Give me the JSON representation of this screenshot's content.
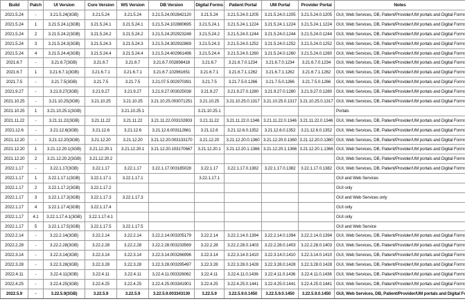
{
  "columns": [
    "Build",
    "Patch",
    "UI Version",
    "Core Version",
    "WS Version",
    "DB Version",
    "Digital Forms",
    "Patient Portal",
    "UM Portal",
    "Provider Portal",
    "Notes"
  ],
  "rows": [
    [
      "2021.5.24",
      "-",
      "3.21.5.24(3GB)",
      "3.21.5.24",
      "3.21.5.24",
      "3.21.5.24.002842120",
      "3.21.5.24",
      "3.21.5.24.0.1205",
      "3.21.5.24.0.1205",
      "3.21.5.24.0.1205",
      "GUI, Web Services, DB, Patient/Provider/UM portals and Digital Forms"
    ],
    [
      "2021.5.24",
      "1",
      "3.21.5.24.1(3GB)",
      "3.21.5.24.1",
      "3.21.5.24.1",
      "3.21.5.24.102880695",
      "3.21.5.24.1",
      "3.21.5.24.1.1224",
      "3.21.5.24.1.1224",
      "3.21.5.24.1.1224",
      "GUI, Web Services, DB, Patient/Provider/UM portals and Digital Forms"
    ],
    [
      "2021.5.24",
      "2",
      "3.21.5.24.2(3GB)",
      "3.21.5.24.2",
      "3.21.5.24.2",
      "3.21.5.24.202923248",
      "3.21.5.24.2",
      "3.21.5.24.0.1244",
      "3.21.5.24.0.1244",
      "3.21.5.24.0.1244",
      "GUI, Web Services, DB, Patient/Provider/UM portals and Digital Forms"
    ],
    [
      "2021.5.24",
      "3",
      "3.21.5.24.3(3GB)",
      "3.21.5.24.3",
      "3.21.5.24.3",
      "3.21.5.24.302932869",
      "3.21.5.24.3",
      "3.21.5.24.0.1252",
      "3.21.5.24.0.1252",
      "3.21.5.24.0.1252",
      "GUI, Web Services, DB, Patient/Provider/UM portals and Digital Forms"
    ],
    [
      "2021.5.24",
      "4",
      "3.21.5.24.4(3GB)",
      "3.21.5.24.4",
      "3.21.5.24.4",
      "3.21.5.24.402961496",
      "3.21.5.24.4",
      "3.21.5.24.0.1260",
      "3.21.5.24.0.1260",
      "3.21.5.24.0.1260",
      "GUI, Web Services, DB, Patient/Provider/UM portals and Digital Forms"
    ],
    [
      "2021.6.7",
      "-",
      "3.21.6.7(3GB)",
      "3.21.6.7",
      "3.21.6.7",
      "3.21.6.7.002898418",
      "3.21.6.7",
      "3.21.6.7.0.1234",
      "3.21.6.7.0.1234",
      "3.21.6.7.0.1234",
      "GUI, Web Services, DB, Patient/Provider/UM portals and Digital Forms"
    ],
    [
      "2021.6.7",
      "1",
      "3.21.6.7.1(3GB)",
      "3.21.6.7.1",
      "3.21.6.7.1",
      "3.21.6.7.102961651",
      "3.21.6.7.1",
      "3.21.6.7.1.1262",
      "3.21.6.7.1.1262",
      "3.21.6.7.1.1262",
      "GUI, Web Services, DB, Patient/Provider/UM portals and Digital Forms"
    ],
    [
      "2021.7.5",
      "-",
      "3.21.7.5(3GB)",
      "3.21.7.5",
      "3.21.7.5",
      "3.21.07.5.002970391",
      "3.21.7.5",
      "3.21.7.5.0.1266",
      "3.21.7.5.0.1266",
      "3.21.7.5.0.1266",
      "GUI, Web Services, DB, Patient/Provider/UM portals and Digital Forms"
    ],
    [
      "2021.9.27",
      "-",
      "3.21.9.27(3GB)",
      "3.21.9.27",
      "3.21.9.27",
      "3.21.9.27.003025038",
      "3.21.9.27",
      "3.21.9.27.0.1280",
      "3.21.9.27.0.1280",
      "3.21.9.27.0.1280",
      "GUI, Web Services, DB, Patient/Provider/UM portals and Digital Forms"
    ],
    [
      "2021.10.25",
      "-",
      "3.21.10.25(3GB)",
      "3.21.10.25",
      "3.21.10.25",
      "3.21.10.25.003071251",
      "3.21.10.25",
      "3.21.10.25.0.1317",
      "3.21.10.25.0.1317",
      "3.21.10.25.0.1317",
      "GUI, Web Services, DB, Patient/Provider/UM portals and Digital Forms"
    ],
    [
      "2021.10.25",
      "1",
      "3.21.10.25.1(3GB)",
      "",
      "3.21.10.25.1",
      "",
      "3.21.10.25.1",
      "",
      "",
      "",
      "Portals"
    ],
    [
      "2021.11.22",
      "-",
      "3.21.11.22(3GB)",
      "3.21.11.22",
      "3.21.11.22",
      "3.21.11.22.003102803",
      "3.21.11.22",
      "3.21.11.22.0.1346",
      "3.21.11.22.0.1346",
      "3.21.11.22.0.1346",
      "GUI, Web Services, DB, Patient/Provider/UM portals and Digital Forms"
    ],
    [
      "2021.12.6",
      "-",
      "3.21.12.6(3GB)",
      "3.21.12.6",
      "3.21.12.6",
      "3.21.12.6.003112661",
      "3.21.12.6",
      "3.21.12.6.0.1352",
      "3.21.12.6.0.1352",
      "3.21.12.6.0.1352",
      "GUI, Web Services, DB, Patient/Provider/UM portals and Digital Forms"
    ],
    [
      "2021.12.20",
      "-",
      "3.21.12.20(3GB)",
      "3.21.12.20",
      "3.21.12.20",
      "3.21.12.20.003133170",
      "3.21.12.20",
      "3.21.12.20.0.1360",
      "3.21.12.20.0.1360",
      "3.21.12.20.0.1360",
      "GUI, Web Services, DB, Patient/Provider/UM portals and Digital Forms"
    ],
    [
      "2021.12.20",
      "1",
      "3.21.12.20.1(3GB)",
      "3.21.12.20.1",
      "3.21.12.20.1",
      "3.21.12.20.103170667",
      "3.21.12.20.1",
      "3.21.12.20.1.1366",
      "3.21.12.20.1.1366",
      "3.21.12.20.1.1366",
      "GUI, Web Services, DB, Patient/Provider/UM portals and Digital Forms"
    ],
    [
      "2021.12.20",
      "2",
      "3.21.12.20.2(3GB)",
      "3.21.12.20.2",
      "",
      "",
      "",
      "",
      "",
      "",
      "GUI, Web Services, DB, Patient/Provider/UM portals and Digital Forms"
    ],
    [
      "2022.1.17",
      "-",
      "3.22.1.17(3GB)",
      "3.22.1.17",
      "3.22.1.17",
      "3.22.1.17.003185028",
      "3.22.1.17",
      "3.22.1.17.0.1382",
      "3.22.1.17.0.1382",
      "3.22.1.17.0.1382",
      "GUI, Web Services, DB, Patient/Provider/UM portals and Digital Forms"
    ],
    [
      "2022.1.17",
      "1",
      "3.22.1.17.1(3GB)",
      "3.22.1.17.1",
      "3.22.1.17.1",
      "",
      "3.22.1.17.1",
      "",
      "",
      "",
      "GUI and  Web Services"
    ],
    [
      "2022.1.17",
      "2",
      "3.22.1.17.2(3GB)",
      "3.22.1.17.2",
      "",
      "",
      "",
      "",
      "",
      "",
      "GUI only"
    ],
    [
      "2022.1.17",
      "3",
      "3.22.1.17.3(3GB)",
      "3.22.1.17.3",
      "3.22.1.17.3",
      "",
      "",
      "",
      "",
      "",
      "GUI and Web Services only"
    ],
    [
      "2022.1.17",
      "4",
      "3.22.1.17.4(3GB)",
      "3.22.1.17.4",
      "",
      "",
      "",
      "",
      "",
      "",
      "GUI only"
    ],
    [
      "2022.1.17",
      "4.1",
      "3.22.1.17.4.1(3GB)",
      "3.22.1.17.4.1",
      "",
      "",
      "",
      "",
      "",
      "",
      "GUI only"
    ],
    [
      "2022.1.17",
      "5",
      "3.22.1.17.5(3GB)",
      "3.22.1.17.5",
      "3.22.1.17.5",
      "",
      "",
      "",
      "",
      "",
      "GUI and Web Service"
    ],
    [
      "2022.2.14",
      "-",
      "3.22.2.14(3GB)",
      "3.22.2.14",
      "3.22.2.14",
      "3.22.2.14.003205179",
      "3.22.2.14",
      "3.22.2.14.0.1394",
      "3.22.2.14.0.1394",
      "3.22.2.14.0.1394",
      "GUI, Web Services, DB, Patient/Provider/UM portals and Digital Forms"
    ],
    [
      "2022.2.28",
      "-",
      "3.22.2.28(3GB)",
      "3.22.2.28",
      "3.22.2.28",
      "3.22.2.28.003233569",
      "3.22.2.28",
      "3.22.2.28.0.1403",
      "3.22.2.28.0.1403",
      "3.22.2.28.0.1403",
      "GUI, Web Services, DB, Patient/Provider/UM portals and Digital Forms"
    ],
    [
      "2022.3.14",
      "-",
      "3.22.3.14(3GB)",
      "3.22.3.14",
      "3.22.3.14",
      "3.22.3.14.003266996",
      "3.22.3.14",
      "3.22.3.14.0.1410",
      "3.22.3.14.0.1410",
      "3.22.3.14.0.1410",
      "GUI, Web Services, DB, Patient/Provider/UM portals and Digital Forms"
    ],
    [
      "2022.3.28",
      "-",
      "3.22.3.28(3GB)",
      "3.22.3.28",
      "3.22.3.28",
      "3.22.3.28.003295497",
      "3.22.3.28",
      "3.22.3.28.0.1428",
      "3.22.3.28.0.1428",
      "3.22.3.28.0.1428",
      "GUI, Web Services, DB, Patient/Provider/UM portals and Digital Forms"
    ],
    [
      "2022.4.11",
      "-",
      "3.22.4.11(3GB)",
      "3.22.4.11",
      "3.22.4.11",
      "3.22.4.11.003326062",
      "3.22.4.11",
      "3.22.4.11.0.1436",
      "3.22.4.11.0.1436",
      "3.22.4.11.0.1436",
      "GUI, Web Services, DB, Patient/Provider/UM portals and Digital Forms"
    ],
    [
      "2022.4.25",
      "-",
      "3.22.4.25(3GB)",
      "3.22.4.25",
      "3.22.4.25",
      "3.22.4.25.003341901",
      "3.22.4.25",
      "3.22.4.25.0.1441",
      "3.22.4.25.0.1441",
      "3.22.4.25.0.1441",
      "GUI, Web Services, DB, Patient/Provider/UM portals and Digital Forms"
    ],
    [
      "2022.5.9",
      "-",
      "3.22.5.9(3GB)",
      "3.22.5.9",
      "3.22.5.9",
      "3.22.5.9.003343130",
      "3.22.5.9",
      "3.22.5.9.0.1450",
      "3.22.5.9.0.1450",
      "3.22.5.9.0.1450",
      "GUI, Web Services, DB, Patient/Provider/UM portals and Digital Forms"
    ]
  ],
  "bold_last_row": true
}
